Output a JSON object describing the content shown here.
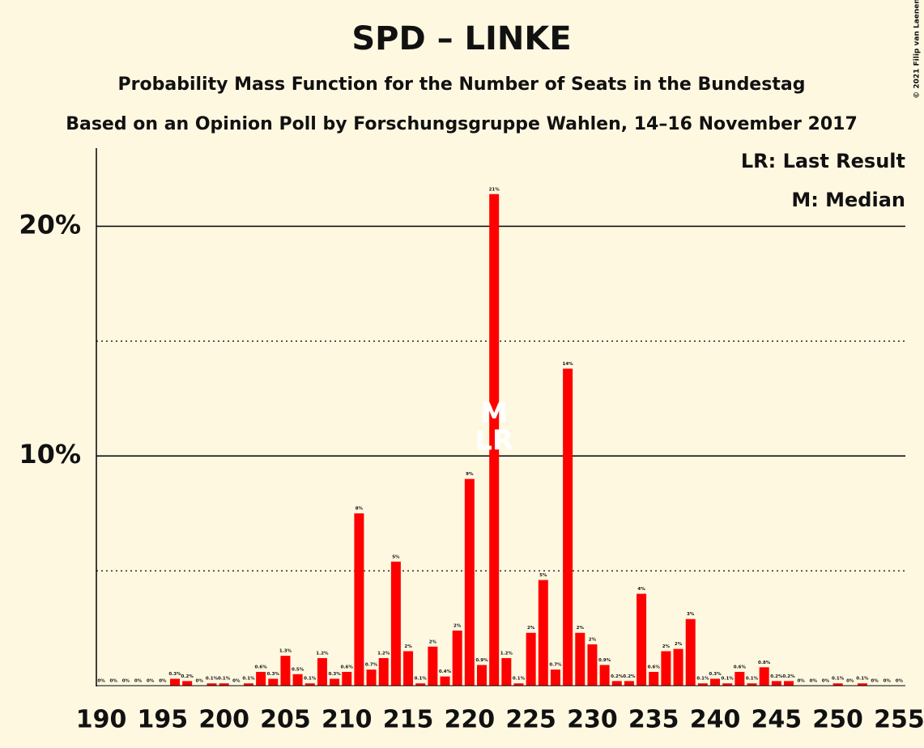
{
  "chart_data": {
    "type": "bar",
    "title": "SPD – LINKE",
    "subtitle": "Probability Mass Function for the Number of Seats in the Bundestag",
    "subtitle2": "Based on an Opinion Poll by Forschungsgruppe Wahlen, 14–16 November 2017",
    "copyright": "© 2021 Filip van Laenen",
    "legend": [
      "LR: Last Result",
      "M: Median"
    ],
    "color": "#ff0000",
    "x": [
      190,
      191,
      192,
      193,
      194,
      195,
      196,
      197,
      198,
      199,
      200,
      201,
      202,
      203,
      204,
      205,
      206,
      207,
      208,
      209,
      210,
      211,
      212,
      213,
      214,
      215,
      216,
      217,
      218,
      219,
      220,
      221,
      222,
      223,
      224,
      225,
      226,
      227,
      228,
      229,
      230,
      231,
      232,
      233,
      234,
      235,
      236,
      237,
      238,
      239,
      240,
      241,
      242,
      243,
      244,
      245,
      246,
      247,
      248,
      249,
      250,
      251,
      252,
      253,
      254,
      255
    ],
    "values": [
      0,
      0,
      0,
      0,
      0,
      0,
      0.3,
      0.2,
      0,
      0.1,
      0.1,
      0,
      0.1,
      0.6,
      0.3,
      1.3,
      0.5,
      0.1,
      1.2,
      0.3,
      0.6,
      7.5,
      0.7,
      1.2,
      5.4,
      1.5,
      0.1,
      1.7,
      0.4,
      2.4,
      9.0,
      0.9,
      21.4,
      1.2,
      0.1,
      2.3,
      4.6,
      0.7,
      13.8,
      2.3,
      1.8,
      0.9,
      0.2,
      0.2,
      4.0,
      0.6,
      1.5,
      1.6,
      2.9,
      0.1,
      0.3,
      0.1,
      0.6,
      0.1,
      0.8,
      0.2,
      0.2,
      0,
      0,
      0,
      0.1,
      0,
      0.1,
      0,
      0,
      0
    ],
    "value_labels": [
      "0%",
      "0%",
      "0%",
      "0%",
      "0%",
      "0%",
      "0.3%",
      "0.2%",
      "0%",
      "0.1%",
      "0.1%",
      "0%",
      "0.1%",
      "0.6%",
      "0.3%",
      "1.3%",
      "0.5%",
      "0.1%",
      "1.2%",
      "0.3%",
      "0.6%",
      "8%",
      "0.7%",
      "1.2%",
      "5%",
      "2%",
      "0.1%",
      "2%",
      "0.4%",
      "2%",
      "9%",
      "0.9%",
      "21%",
      "1.2%",
      "0.1%",
      "2%",
      "5%",
      "0.7%",
      "14%",
      "2%",
      "2%",
      "0.9%",
      "0.2%",
      "0.2%",
      "4%",
      "0.6%",
      "2%",
      "2%",
      "3%",
      "0.1%",
      "0.3%",
      "0.1%",
      "0.6%",
      "0.1%",
      "0.8%",
      "0.2%",
      "0.2%",
      "0%",
      "0%",
      "0%",
      "0.1%",
      "0%",
      "0.1%",
      "0%",
      "0%",
      "0%"
    ],
    "annotations": [
      {
        "x": 222,
        "text": "M"
      },
      {
        "x": 222,
        "text": "LR"
      }
    ],
    "xlim": [
      189.6,
      255.5
    ],
    "xticks": [
      190,
      195,
      200,
      205,
      210,
      215,
      220,
      225,
      230,
      235,
      240,
      245,
      250,
      255
    ],
    "ylim": [
      0,
      23.4
    ],
    "yticks": [
      {
        "value": 10,
        "label": "10%"
      },
      {
        "value": 20,
        "label": "20%"
      }
    ],
    "minor_yticks": [
      5,
      15
    ],
    "grid": true
  }
}
